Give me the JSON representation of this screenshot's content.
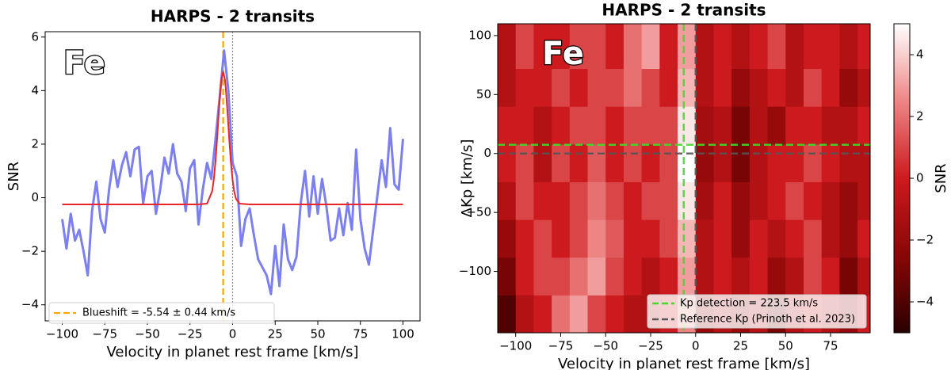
{
  "chart_data": [
    {
      "type": "line",
      "title": "HARPS - 2 transits",
      "annotation": "Fe",
      "xlabel": "Velocity in planet rest frame [km/s]",
      "ylabel": "SNR",
      "xlim": [
        -110,
        110
      ],
      "ylim": [
        -4.6,
        6.2
      ],
      "xticks": [
        {
          "value": -100,
          "label": "−100"
        },
        {
          "value": -75,
          "label": "−75"
        },
        {
          "value": -50,
          "label": "−50"
        },
        {
          "value": -25,
          "label": "−25"
        },
        0,
        25,
        50,
        75,
        100
      ],
      "yticks": [
        {
          "value": -4,
          "label": "−4"
        },
        {
          "value": -2,
          "label": "−2"
        },
        0,
        2,
        4,
        6
      ],
      "series": [
        {
          "color": "#7b7ff0",
          "x": [
            -100,
            -97.5,
            -95,
            -92.5,
            -90,
            -87.5,
            -85,
            -82.5,
            -80,
            -77.5,
            -75,
            -72.5,
            -70,
            -67.5,
            -65,
            -62.5,
            -60,
            -57.5,
            -55,
            -52.5,
            -50,
            -47.5,
            -45,
            -42.5,
            -40,
            -37.5,
            -35,
            -32.5,
            -30,
            -27.5,
            -25,
            -22.5,
            -20,
            -17.5,
            -15,
            -12.5,
            -10,
            -7.5,
            -5,
            -2.5,
            0,
            2.5,
            5,
            7.5,
            10,
            12.5,
            15,
            17.5,
            20,
            22.5,
            25,
            27.5,
            30,
            32.5,
            35,
            37.5,
            40,
            42.5,
            45,
            47.5,
            50,
            52.5,
            55,
            57.5,
            60,
            62.5,
            65,
            67.5,
            70,
            72.5,
            75,
            77.5,
            80,
            82.5,
            85,
            87.5,
            90,
            92.5,
            95,
            97.5,
            100
          ],
          "values": [
            -0.8,
            -1.9,
            -0.6,
            -1.6,
            -1.2,
            -2.0,
            -2.9,
            -0.5,
            0.6,
            -0.8,
            -1.3,
            0.3,
            1.4,
            0.4,
            1.2,
            1.7,
            0.8,
            1.8,
            1.9,
            -0.2,
            0.8,
            1.0,
            -0.6,
            0.3,
            1.5,
            0.9,
            2.0,
            0.9,
            0.6,
            -0.5,
            1.1,
            1.4,
            -1.0,
            0.3,
            1.3,
            0.7,
            2.2,
            3.8,
            5.5,
            4.0,
            1.3,
            0.8,
            -1.8,
            -0.8,
            -0.4,
            -1.4,
            -2.3,
            -2.6,
            -2.9,
            -3.6,
            -1.8,
            -3.3,
            -1.0,
            -2.3,
            -2.7,
            -2.2,
            -0.2,
            1.0,
            -0.7,
            0.8,
            -0.6,
            0.7,
            -0.3,
            -1.6,
            -1.5,
            -0.4,
            -1.4,
            -0.2,
            -1.2,
            1.8,
            -0.8,
            -1.9,
            -2.5,
            -1.2,
            0.1,
            1.4,
            0.4,
            2.6,
            0.5,
            0.3,
            2.2
          ]
        },
        {
          "color": "#e8262a",
          "x": [
            -100,
            -20,
            -15,
            -12,
            -11,
            -10,
            -9,
            -8,
            -7,
            -6.5,
            -5.54,
            -4.5,
            -4,
            -3,
            -2,
            -1,
            0,
            1,
            2,
            4,
            10,
            100
          ],
          "values": [
            -0.25,
            -0.25,
            -0.22,
            0.24,
            0.7,
            1.39,
            2.3,
            3.29,
            4.15,
            4.45,
            4.7,
            4.41,
            4.09,
            3.21,
            2.22,
            1.32,
            0.65,
            0.21,
            -0.04,
            -0.22,
            -0.25,
            -0.25
          ]
        }
      ],
      "vlines": [
        {
          "name": "Blueshift = -5.54 ± 0.44 km/s",
          "x": -5.54,
          "color": "#ffa500",
          "style": "dashed"
        },
        {
          "x": 0,
          "color": "#888888",
          "style": "dotted"
        }
      ]
    },
    {
      "type": "heatmap",
      "title": "HARPS - 2 transits",
      "annotation": "Fe",
      "xlabel": "Velocity in planet rest frame [km/s]",
      "ylabel": "ΔKp [km/s]",
      "colorbar_label": "SNR",
      "xlim": [
        -110,
        97
      ],
      "ylim": [
        -152,
        110
      ],
      "xticks": [
        {
          "value": -100,
          "label": "−100"
        },
        {
          "value": -75,
          "label": "−75"
        },
        {
          "value": -50,
          "label": "−50"
        },
        {
          "value": -25,
          "label": "−25"
        },
        0,
        25,
        50,
        75
      ],
      "yticks": [
        {
          "value": -100,
          "label": "−100"
        },
        {
          "value": -50,
          "label": "−50"
        },
        0,
        50,
        100
      ],
      "clim": [
        -5,
        5
      ],
      "cticks": [
        {
          "value": -4,
          "label": "−4"
        },
        {
          "value": -2,
          "label": "−2"
        },
        0,
        2,
        4
      ],
      "colorscale": [
        [
          -5,
          "#2a0000"
        ],
        [
          -2.5,
          "#8a0606"
        ],
        [
          0,
          "#cc1a1e"
        ],
        [
          2.5,
          "#ee8585"
        ],
        [
          5,
          "#ffffff"
        ]
      ],
      "x": [
        -105,
        -95,
        -85,
        -75,
        -65,
        -55,
        -45,
        -35,
        -25,
        -15,
        -5,
        5,
        15,
        25,
        35,
        45,
        55,
        65,
        75,
        85,
        95
      ],
      "y": [
        -136,
        -104,
        -72,
        -40,
        -8,
        24,
        56,
        88
      ],
      "z": [
        [
          -4,
          -1,
          0,
          2,
          3,
          1,
          0,
          -1,
          -1,
          0,
          2.5,
          -2,
          -1,
          -2,
          -1,
          -3,
          -1,
          0,
          -1,
          -2,
          0
        ],
        [
          -3,
          0,
          1,
          1,
          2,
          3,
          1,
          0,
          -1,
          0,
          3,
          -1,
          0,
          -1,
          0,
          -2,
          -1,
          1,
          0,
          -3,
          -1
        ],
        [
          -2,
          0,
          1,
          0,
          1,
          2.5,
          1.5,
          0,
          0,
          1,
          3.5,
          -1,
          0,
          -2,
          0,
          -1,
          0,
          1,
          -1,
          -2,
          0
        ],
        [
          -1,
          1,
          0,
          0,
          1,
          2,
          1,
          0,
          1,
          1,
          4.5,
          -1.5,
          0,
          -2,
          -1,
          0,
          1,
          0,
          -1,
          -2,
          -1
        ],
        [
          0,
          1,
          -1,
          1,
          0,
          1.5,
          0,
          1,
          0,
          1,
          5,
          -2,
          -1,
          -3,
          -1,
          0,
          0,
          1,
          0,
          -1,
          -1
        ],
        [
          0,
          0,
          -1,
          0,
          1,
          1,
          0,
          1,
          1,
          1,
          4.5,
          -1.5,
          -1,
          -3,
          -1,
          -2,
          0,
          0,
          -1,
          -1,
          0
        ],
        [
          -1,
          0,
          0,
          1,
          0,
          1,
          1,
          2,
          1,
          0,
          3.5,
          -1,
          0,
          -2,
          -1,
          0,
          -1,
          1,
          0,
          -2,
          -1
        ],
        [
          -1,
          1,
          0,
          0,
          1,
          1,
          0,
          2,
          3,
          0,
          3,
          -1,
          0,
          -1,
          0,
          1,
          -1,
          0,
          0,
          -1,
          0
        ]
      ],
      "lines": [
        {
          "name": "Kp detection = 223.5 km/s",
          "x": -6.6,
          "y": 7.4,
          "color": "#3fdc2a"
        },
        {
          "name": "Reference Kp (Prinoth et al. 2023)",
          "x": 0,
          "y": 0,
          "color": "#555555"
        }
      ]
    }
  ]
}
